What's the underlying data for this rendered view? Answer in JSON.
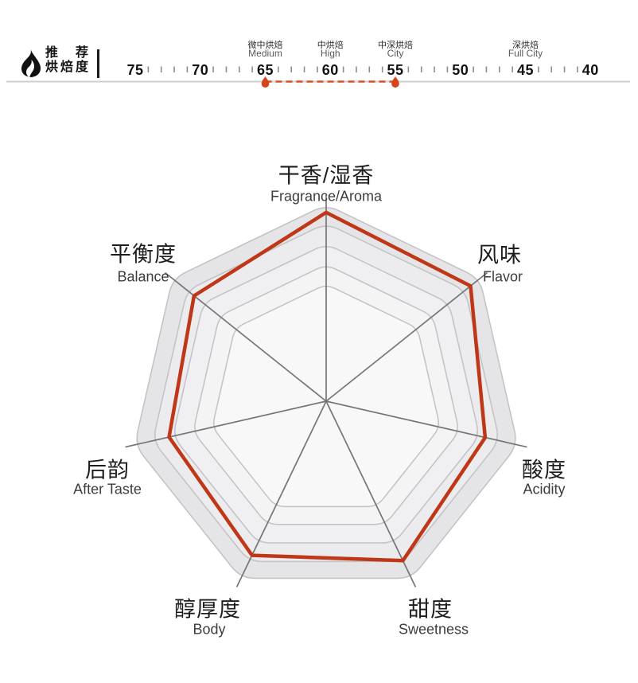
{
  "header": {
    "title_line1": "推 荐",
    "title_line2": "烘焙度"
  },
  "roast_scale": {
    "direction": "descending",
    "majors": [
      75,
      70,
      65,
      60,
      55,
      50,
      45,
      40
    ],
    "minor_ticks_per_interval": 4,
    "stages": [
      {
        "zh": "微中烘焙",
        "en": "Medium",
        "value": 65
      },
      {
        "zh": "中烘焙",
        "en": "High",
        "value": 60
      },
      {
        "zh": "中深烘焙",
        "en": "City",
        "value": 55
      },
      {
        "zh": "深烘焙",
        "en": "Full City",
        "value": 45
      }
    ],
    "recommended_range": {
      "from": 65,
      "to": 55
    },
    "colors": {
      "marker": "#d5451b",
      "dashed_line": "#d9501f",
      "baseline": "#cfcfcf",
      "tick": "#8c8c8c",
      "number": "#121212",
      "stage_zh": "#2b2b2b",
      "stage_en": "#5a5a5a"
    }
  },
  "chart_data": {
    "type": "radar",
    "axes": [
      {
        "zh": "干香/湿香",
        "en": "Fragrance/Aroma"
      },
      {
        "zh": "风味",
        "en": "Flavor"
      },
      {
        "zh": "酸度",
        "en": "Acidity"
      },
      {
        "zh": "甜度",
        "en": "Sweetness"
      },
      {
        "zh": "醇厚度",
        "en": "Body"
      },
      {
        "zh": "后韵",
        "en": "After Taste"
      },
      {
        "zh": "平衡度",
        "en": "Balance"
      }
    ],
    "axes_order": "clockwise-from-top",
    "values_fraction_of_max": [
      0.96,
      0.94,
      0.83,
      0.9,
      0.87,
      0.82,
      0.86
    ],
    "scale": {
      "min": 0,
      "max": 1
    },
    "ring_fractions": [
      1.0,
      0.905,
      0.8,
      0.695,
      0.595
    ],
    "grid": "concentric-rounded-heptagons",
    "legend": "none",
    "colors": {
      "series_stroke": "#bf3717",
      "ring_fills": [
        "#e5e5e7",
        "#ececee",
        "#f0f0f2",
        "#f4f4f5",
        "#f8f8f8"
      ],
      "ring_border": "#c2c2c4",
      "spoke": "#757575",
      "label_zh": "#1d1d1d",
      "label_en": "#3d3d3d"
    }
  }
}
